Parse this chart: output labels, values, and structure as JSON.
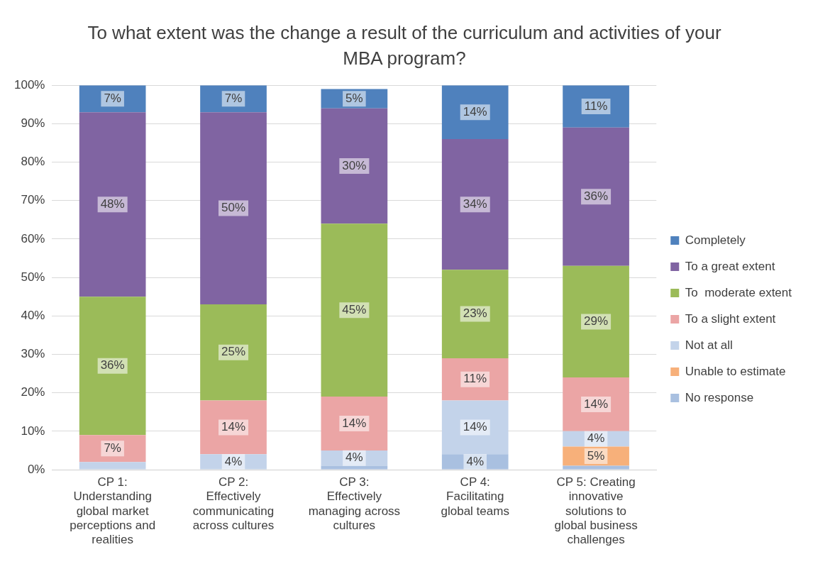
{
  "chart_data": {
    "type": "bar",
    "stacked": true,
    "title": "To what extent was the change a result of the curriculum and activities of your MBA program?",
    "categories": [
      "CP 1: Understanding global market perceptions and realities",
      "CP 2: Effectively communicating across cultures",
      "CP 3: Effectively managing across cultures",
      "CP 4: Facilitating global teams",
      "CP 5: Creating innovative solutions to global business challenges"
    ],
    "ylim": [
      0,
      100
    ],
    "yticks": [
      {
        "value": 0,
        "label": "0%"
      },
      {
        "value": 10,
        "label": "10%"
      },
      {
        "value": 20,
        "label": "20%"
      },
      {
        "value": 30,
        "label": "30%"
      },
      {
        "value": 40,
        "label": "40%"
      },
      {
        "value": 50,
        "label": "50%"
      },
      {
        "value": 60,
        "label": "60%"
      },
      {
        "value": 70,
        "label": "70%"
      },
      {
        "value": 80,
        "label": "80%"
      },
      {
        "value": 90,
        "label": "90%"
      },
      {
        "value": 100,
        "label": "100%"
      }
    ],
    "grid": "y",
    "legend": "right",
    "series": [
      {
        "name": "No response",
        "color": "#a9c0e0",
        "values": [
          null,
          null,
          1,
          4,
          1
        ],
        "value_labels": [
          null,
          null,
          null,
          "4%",
          null
        ]
      },
      {
        "name": "Unable to estimate",
        "color": "#f7b07a",
        "values": [
          null,
          null,
          null,
          null,
          5
        ],
        "value_labels": [
          null,
          null,
          null,
          null,
          "5%"
        ]
      },
      {
        "name": "Not at all",
        "color": "#c3d3ea",
        "values": [
          2,
          4,
          4,
          14,
          4
        ],
        "value_labels": [
          null,
          "4%",
          "4%",
          "14%",
          "4%"
        ]
      },
      {
        "name": "To a slight extent",
        "color": "#eba5a5",
        "values": [
          7,
          14,
          14,
          11,
          14
        ],
        "value_labels": [
          "7%",
          "14%",
          "14%",
          "11%",
          "14%"
        ]
      },
      {
        "name": "To  moderate extent",
        "color": "#9bbb59",
        "values": [
          36,
          25,
          45,
          23,
          29
        ],
        "value_labels": [
          "36%",
          "25%",
          "45%",
          "23%",
          "29%"
        ]
      },
      {
        "name": "To a great extent",
        "color": "#8064a2",
        "values": [
          48,
          50,
          30,
          34,
          36
        ],
        "value_labels": [
          "48%",
          "50%",
          "30%",
          "34%",
          "36%"
        ]
      },
      {
        "name": "Completely",
        "color": "#4f81bd",
        "values": [
          7,
          7,
          5,
          14,
          11
        ],
        "value_labels": [
          "7%",
          "7%",
          "5%",
          "14%",
          "11%"
        ]
      }
    ]
  }
}
